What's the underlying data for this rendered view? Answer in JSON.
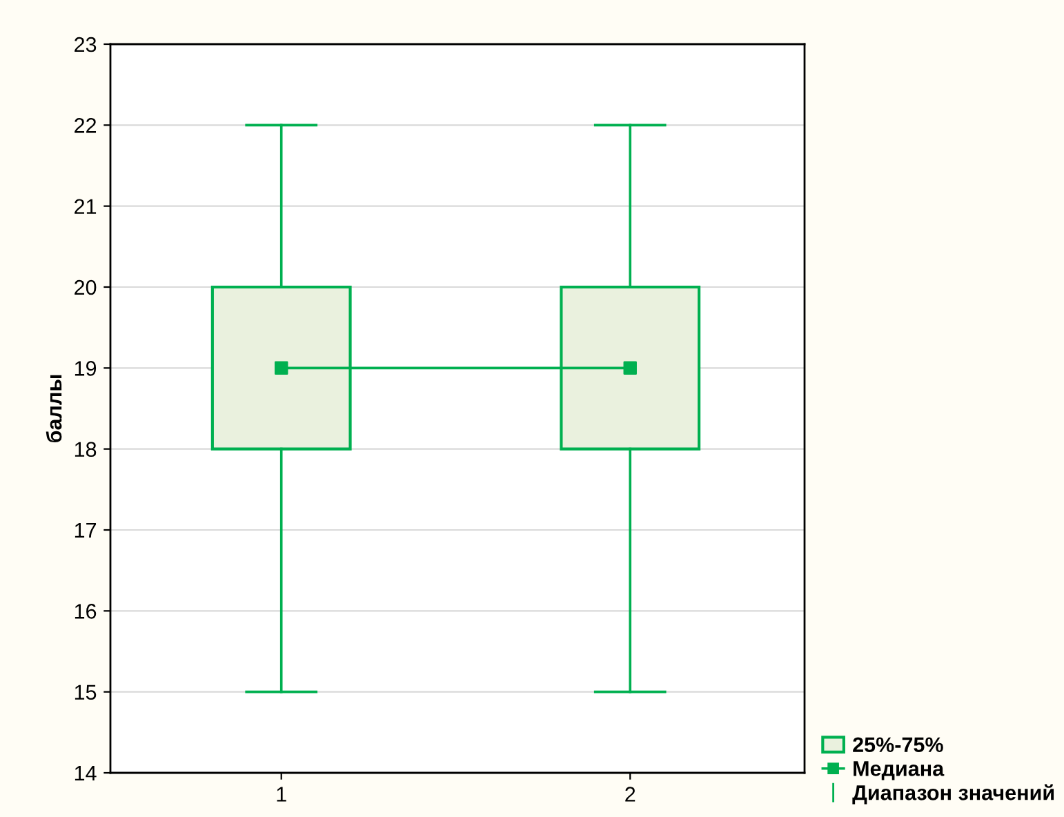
{
  "chart_data": {
    "type": "box",
    "ylabel": "баллы",
    "categories": [
      "1",
      "2"
    ],
    "series": [
      {
        "name": "25%-75%",
        "color": "#00b050",
        "boxes": [
          {
            "low": 15,
            "q1": 18,
            "median": 19,
            "q3": 20,
            "high": 22
          },
          {
            "low": 15,
            "q1": 18,
            "median": 19,
            "q3": 20,
            "high": 22
          }
        ]
      },
      {
        "type": "line",
        "name": "Медиана",
        "color": "#00b050",
        "values": [
          19,
          19
        ]
      }
    ],
    "annotations": [
      "Диапазон значений"
    ],
    "ylim": [
      14,
      23
    ],
    "yticks": [
      14,
      15,
      16,
      17,
      18,
      19,
      20,
      21,
      22,
      23
    ],
    "grid": "y",
    "legend": "bottom right"
  }
}
